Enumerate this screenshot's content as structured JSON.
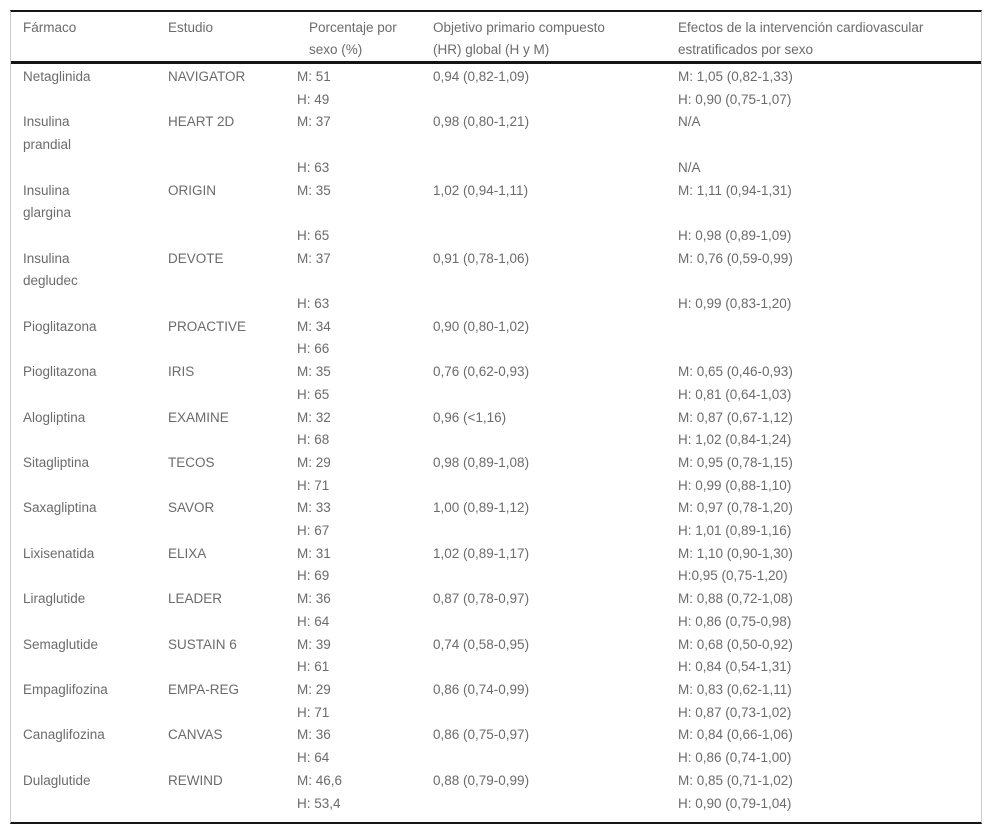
{
  "colors": {
    "text": "#6b6b6b",
    "rule": "#151515",
    "side_border": "#cccccc",
    "background": "#ffffff"
  },
  "table": {
    "columns": [
      {
        "key": "farmaco",
        "line1": "Fármaco",
        "line2": ""
      },
      {
        "key": "estudio",
        "line1": "Estudio",
        "line2": ""
      },
      {
        "key": "sexo",
        "line1": "Porcentaje por",
        "line2": "sexo (%)"
      },
      {
        "key": "hr",
        "line1": "Objetivo primario compuesto",
        "line2": "(HR) global (H y M)"
      },
      {
        "key": "efectos",
        "line1": "Efectos de la intervención cardiovascular",
        "line2": "estratificados por sexo"
      }
    ],
    "rows": [
      {
        "farmaco": "Netaglinida",
        "estudio": "NAVIGATOR",
        "sexo": "M: 51",
        "hr": "0,94 (0,82-1,09)",
        "efectos": "M: 1,05 (0,82-1,33)"
      },
      {
        "farmaco": "",
        "estudio": "",
        "sexo": "H: 49",
        "hr": "",
        "efectos": "H: 0,90 (0,75-1,07)"
      },
      {
        "farmaco": "Insulina",
        "estudio": "HEART 2D",
        "sexo": "M: 37",
        "hr": "0,98 (0,80-1,21)",
        "efectos": "N/A"
      },
      {
        "farmaco": "prandial",
        "estudio": "",
        "sexo": "",
        "hr": "",
        "efectos": ""
      },
      {
        "farmaco": "",
        "estudio": "",
        "sexo": "H: 63",
        "hr": "",
        "efectos": "N/A"
      },
      {
        "farmaco": "Insulina",
        "estudio": "ORIGIN",
        "sexo": "M: 35",
        "hr": "1,02 (0,94-1,11)",
        "efectos": "M: 1,11 (0,94-1,31)"
      },
      {
        "farmaco": "glargina",
        "estudio": "",
        "sexo": "",
        "hr": "",
        "efectos": ""
      },
      {
        "farmaco": "",
        "estudio": "",
        "sexo": "H: 65",
        "hr": "",
        "efectos": "H: 0,98 (0,89-1,09)"
      },
      {
        "farmaco": "Insulina",
        "estudio": "DEVOTE",
        "sexo": "M: 37",
        "hr": "0,91 (0,78-1,06)",
        "efectos": "M: 0,76 (0,59-0,99)"
      },
      {
        "farmaco": "degludec",
        "estudio": "",
        "sexo": "",
        "hr": "",
        "efectos": ""
      },
      {
        "farmaco": "",
        "estudio": "",
        "sexo": "H: 63",
        "hr": "",
        "efectos": "H: 0,99 (0,83-1,20)"
      },
      {
        "farmaco": "Pioglitazona",
        "estudio": "PROACTIVE",
        "sexo": "M: 34",
        "hr": "0,90 (0,80-1,02)",
        "efectos": ""
      },
      {
        "farmaco": "",
        "estudio": "",
        "sexo": "H: 66",
        "hr": "",
        "efectos": ""
      },
      {
        "farmaco": "Pioglitazona",
        "estudio": "IRIS",
        "sexo": "M: 35",
        "hr": "0,76 (0,62-0,93)",
        "efectos": "M: 0,65 (0,46-0,93)"
      },
      {
        "farmaco": "",
        "estudio": "",
        "sexo": "H: 65",
        "hr": "",
        "efectos": "H: 0,81 (0,64-1,03)"
      },
      {
        "farmaco": "Alogliptina",
        "estudio": "EXAMINE",
        "sexo": "M: 32",
        "hr": "0,96 (<1,16)",
        "efectos": "M: 0,87 (0,67-1,12)"
      },
      {
        "farmaco": "",
        "estudio": "",
        "sexo": "H: 68",
        "hr": "",
        "efectos": "H: 1,02 (0,84-1,24)"
      },
      {
        "farmaco": "Sitagliptina",
        "estudio": "TECOS",
        "sexo": "M: 29",
        "hr": "0,98 (0,89-1,08)",
        "efectos": "M: 0,95 (0,78-1,15)"
      },
      {
        "farmaco": "",
        "estudio": "",
        "sexo": "H: 71",
        "hr": "",
        "efectos": "H: 0,99 (0,88-1,10)"
      },
      {
        "farmaco": "Saxagliptina",
        "estudio": "SAVOR",
        "sexo": "M: 33",
        "hr": "1,00 (0,89-1,12)",
        "efectos": "M: 0,97 (0,78-1,20)"
      },
      {
        "farmaco": "",
        "estudio": "",
        "sexo": "H: 67",
        "hr": "",
        "efectos": "H: 1,01 (0,89-1,16)"
      },
      {
        "farmaco": "Lixisenatida",
        "estudio": "ELIXA",
        "sexo": "M: 31",
        "hr": "1,02 (0,89-1,17)",
        "efectos": "M: 1,10 (0,90-1,30)"
      },
      {
        "farmaco": "",
        "estudio": "",
        "sexo": "H: 69",
        "hr": "",
        "efectos": "H:0,95 (0,75-1,20)"
      },
      {
        "farmaco": "Liraglutide",
        "estudio": "LEADER",
        "sexo": "M: 36",
        "hr": "0,87 (0,78-0,97)",
        "efectos": "M: 0,88 (0,72-1,08)"
      },
      {
        "farmaco": "",
        "estudio": "",
        "sexo": "H: 64",
        "hr": "",
        "efectos": "H: 0,86 (0,75-0,98)"
      },
      {
        "farmaco": "Semaglutide",
        "estudio": "SUSTAIN 6",
        "sexo": "M: 39",
        "hr": "0,74 (0,58-0,95)",
        "efectos": "M: 0,68 (0,50-0,92)"
      },
      {
        "farmaco": "",
        "estudio": "",
        "sexo": "H: 61",
        "hr": "",
        "efectos": "H: 0,84 (0,54-1,31)"
      },
      {
        "farmaco": "Empaglifozina",
        "estudio": "EMPA-REG",
        "sexo": "M: 29",
        "hr": "0,86 (0,74-0,99)",
        "efectos": "M: 0,83 (0,62-1,11)"
      },
      {
        "farmaco": "",
        "estudio": "",
        "sexo": "H: 71",
        "hr": "",
        "efectos": "H: 0,87 (0,73-1,02)"
      },
      {
        "farmaco": "Canaglifozina",
        "estudio": "CANVAS",
        "sexo": "M: 36",
        "hr": "0,86 (0,75-0,97)",
        "efectos": "M: 0,84 (0,66-1,06)"
      },
      {
        "farmaco": "",
        "estudio": "",
        "sexo": "H: 64",
        "hr": "",
        "efectos": "H: 0,86 (0,74-1,00)"
      },
      {
        "farmaco": "Dulaglutide",
        "estudio": "REWIND",
        "sexo": "M: 46,6",
        "hr": "0,88 (0,79-0,99)",
        "efectos": "M: 0,85 (0,71-1,02)"
      },
      {
        "farmaco": "",
        "estudio": "",
        "sexo": "H: 53,4",
        "hr": "",
        "efectos": "H: 0,90 (0,79-1,04)"
      }
    ]
  }
}
